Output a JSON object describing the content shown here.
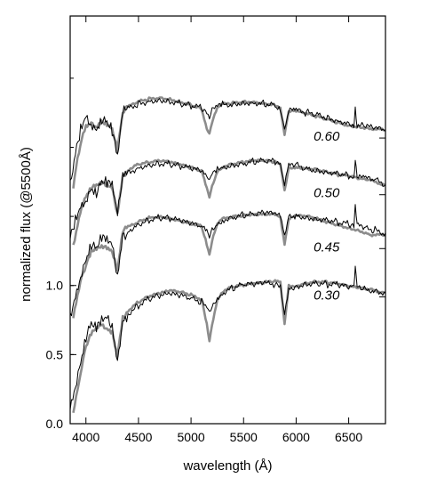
{
  "chart_data": {
    "type": "line",
    "title": "",
    "xlabel": "wavelength (Å)",
    "ylabel": "normalized flux (@5500Å)",
    "xlim": [
      3850,
      6850
    ],
    "ylim": [
      0.0,
      2.95
    ],
    "x_ticks": [
      4000,
      4500,
      5000,
      5500,
      6000,
      6500
    ],
    "y_ticks": [
      0.0,
      0.5,
      1.0
    ],
    "y_tick_labels": [
      "0.0",
      "0.5",
      "1.0"
    ],
    "grid": false,
    "legend": "none",
    "colors": {
      "observed": "#000000",
      "model": "#8c8c8c"
    },
    "offset_groups": [
      {
        "label": "0.30",
        "anchor": [
          6150,
          0.93
        ],
        "observed": {
          "x": [
            3850,
            3900,
            3950,
            4000,
            4050,
            4100,
            4150,
            4200,
            4250,
            4300,
            4350,
            4400,
            4500,
            4600,
            4700,
            4800,
            4900,
            5000,
            5100,
            5150,
            5175,
            5200,
            5250,
            5300,
            5400,
            5500,
            5600,
            5700,
            5800,
            5850,
            5890,
            5930,
            6000,
            6100,
            6200,
            6300,
            6400,
            6500,
            6550,
            6563,
            6580,
            6650,
            6750,
            6850
          ],
          "y": [
            0.15,
            0.3,
            0.45,
            0.62,
            0.7,
            0.66,
            0.72,
            0.74,
            0.7,
            0.45,
            0.78,
            0.8,
            0.86,
            0.9,
            0.92,
            0.93,
            0.92,
            0.9,
            0.88,
            0.84,
            0.8,
            0.86,
            0.92,
            0.95,
            0.98,
            1.0,
            1.0,
            1.01,
            1.0,
            0.98,
            0.78,
            0.98,
            1.0,
            1.02,
            1.02,
            1.01,
            1.0,
            0.98,
            0.99,
            1.12,
            0.98,
            0.97,
            0.97,
            0.95
          ]
        },
        "model": {
          "x": [
            3880,
            3920,
            3960,
            4000,
            4050,
            4100,
            4150,
            4200,
            4250,
            4300,
            4350,
            4400,
            4500,
            4600,
            4700,
            4800,
            4900,
            5000,
            5100,
            5150,
            5175,
            5200,
            5250,
            5300,
            5400,
            5500,
            5600,
            5700,
            5800,
            5850,
            5890,
            5930,
            6000,
            6100,
            6200,
            6300,
            6400,
            6500,
            6600,
            6700,
            6850
          ],
          "y": [
            0.1,
            0.25,
            0.42,
            0.55,
            0.64,
            0.68,
            0.7,
            0.68,
            0.66,
            0.5,
            0.78,
            0.82,
            0.88,
            0.92,
            0.94,
            0.96,
            0.95,
            0.93,
            0.9,
            0.72,
            0.6,
            0.72,
            0.9,
            0.96,
            0.99,
            1.0,
            1.01,
            1.02,
            1.03,
            1.02,
            0.72,
            1.0,
            1.0,
            1.02,
            1.03,
            1.02,
            1.01,
            0.99,
            0.98,
            0.97,
            0.95
          ]
        }
      },
      {
        "label": "0.45",
        "anchor": [
          6150,
          1.28
        ],
        "observed": {
          "x": [
            3850,
            3900,
            3950,
            4000,
            4050,
            4100,
            4150,
            4200,
            4250,
            4300,
            4350,
            4400,
            4500,
            4600,
            4700,
            4800,
            4900,
            5000,
            5100,
            5150,
            5175,
            5200,
            5250,
            5300,
            5400,
            5500,
            5600,
            5700,
            5800,
            5850,
            5890,
            5930,
            6000,
            6100,
            6200,
            6300,
            6400,
            6500,
            6550,
            6563,
            6580,
            6650,
            6750,
            6850
          ],
          "y": [
            0.8,
            0.95,
            1.1,
            1.2,
            1.3,
            1.25,
            1.32,
            1.3,
            1.26,
            1.05,
            1.36,
            1.4,
            1.45,
            1.48,
            1.49,
            1.48,
            1.46,
            1.44,
            1.42,
            1.38,
            1.34,
            1.4,
            1.45,
            1.48,
            1.5,
            1.51,
            1.51,
            1.52,
            1.51,
            1.49,
            1.34,
            1.49,
            1.51,
            1.5,
            1.49,
            1.48,
            1.46,
            1.44,
            1.43,
            1.58,
            1.43,
            1.41,
            1.4,
            1.38
          ]
        },
        "model": {
          "x": [
            3880,
            3920,
            3960,
            4000,
            4050,
            4100,
            4150,
            4200,
            4250,
            4300,
            4350,
            4400,
            4500,
            4600,
            4700,
            4800,
            4900,
            5000,
            5100,
            5150,
            5175,
            5200,
            5250,
            5300,
            5400,
            5500,
            5600,
            5700,
            5800,
            5850,
            5890,
            5930,
            6000,
            6100,
            6200,
            6300,
            6400,
            6500,
            6600,
            6700,
            6850
          ],
          "y": [
            0.75,
            0.92,
            1.05,
            1.15,
            1.26,
            1.28,
            1.3,
            1.28,
            1.25,
            1.1,
            1.38,
            1.42,
            1.46,
            1.49,
            1.5,
            1.49,
            1.47,
            1.45,
            1.43,
            1.3,
            1.22,
            1.32,
            1.44,
            1.48,
            1.5,
            1.51,
            1.52,
            1.52,
            1.52,
            1.5,
            1.3,
            1.48,
            1.5,
            1.5,
            1.48,
            1.46,
            1.44,
            1.42,
            1.4,
            1.37,
            1.36
          ]
        }
      },
      {
        "label": "0.50",
        "anchor": [
          6150,
          1.67
        ],
        "observed": {
          "x": [
            3850,
            3900,
            3950,
            4000,
            4050,
            4100,
            4150,
            4200,
            4250,
            4300,
            4350,
            4400,
            4500,
            4600,
            4700,
            4800,
            4900,
            5000,
            5100,
            5150,
            5175,
            5200,
            5250,
            5300,
            5400,
            5500,
            5600,
            5700,
            5800,
            5850,
            5890,
            5930,
            6000,
            6100,
            6200,
            6300,
            6400,
            6500,
            6550,
            6563,
            6580,
            6650,
            6750,
            6850
          ],
          "y": [
            1.35,
            1.5,
            1.6,
            1.65,
            1.72,
            1.68,
            1.74,
            1.72,
            1.7,
            1.48,
            1.78,
            1.82,
            1.86,
            1.88,
            1.89,
            1.88,
            1.86,
            1.84,
            1.82,
            1.78,
            1.74,
            1.8,
            1.84,
            1.86,
            1.88,
            1.89,
            1.9,
            1.9,
            1.89,
            1.87,
            1.72,
            1.86,
            1.87,
            1.85,
            1.84,
            1.83,
            1.82,
            1.8,
            1.79,
            1.92,
            1.78,
            1.77,
            1.76,
            1.73
          ]
        },
        "model": {
          "x": [
            3880,
            3920,
            3960,
            4000,
            4050,
            4100,
            4150,
            4200,
            4250,
            4300,
            4350,
            4400,
            4500,
            4600,
            4700,
            4800,
            4900,
            5000,
            5100,
            5150,
            5175,
            5200,
            5250,
            5300,
            5400,
            5500,
            5600,
            5700,
            5800,
            5850,
            5890,
            5930,
            6000,
            6100,
            6200,
            6300,
            6400,
            6500,
            6600,
            6700,
            6850
          ],
          "y": [
            1.3,
            1.45,
            1.58,
            1.64,
            1.7,
            1.71,
            1.73,
            1.72,
            1.7,
            1.52,
            1.8,
            1.84,
            1.88,
            1.89,
            1.9,
            1.89,
            1.87,
            1.85,
            1.83,
            1.7,
            1.64,
            1.72,
            1.83,
            1.86,
            1.88,
            1.89,
            1.9,
            1.9,
            1.89,
            1.87,
            1.68,
            1.85,
            1.86,
            1.85,
            1.84,
            1.82,
            1.8,
            1.79,
            1.77,
            1.76,
            1.73
          ]
        }
      },
      {
        "label": "0.60",
        "anchor": [
          6150,
          2.08
        ],
        "observed": {
          "x": [
            3850,
            3900,
            3950,
            4000,
            4050,
            4100,
            4150,
            4200,
            4250,
            4300,
            4350,
            4400,
            4500,
            4600,
            4700,
            4800,
            4900,
            5000,
            5100,
            5150,
            5175,
            5200,
            5250,
            5300,
            5400,
            5500,
            5600,
            5700,
            5800,
            5850,
            5890,
            5930,
            6000,
            6100,
            6200,
            6300,
            6400,
            6500,
            6550,
            6563,
            6580,
            6650,
            6750,
            6850
          ],
          "y": [
            1.7,
            1.95,
            2.15,
            2.25,
            2.2,
            2.15,
            2.22,
            2.18,
            2.1,
            1.9,
            2.22,
            2.28,
            2.32,
            2.34,
            2.35,
            2.34,
            2.32,
            2.3,
            2.28,
            2.24,
            2.2,
            2.26,
            2.29,
            2.31,
            2.32,
            2.33,
            2.33,
            2.32,
            2.3,
            2.28,
            2.12,
            2.26,
            2.26,
            2.25,
            2.24,
            2.22,
            2.2,
            2.18,
            2.17,
            2.3,
            2.16,
            2.15,
            2.13,
            2.12
          ]
        },
        "model": {
          "x": [
            3880,
            3920,
            3960,
            4000,
            4050,
            4100,
            4150,
            4200,
            4250,
            4300,
            4350,
            4400,
            4500,
            4600,
            4700,
            4800,
            4900,
            5000,
            5100,
            5150,
            5175,
            5200,
            5250,
            5300,
            5400,
            5500,
            5600,
            5700,
            5800,
            5850,
            5890,
            5930,
            6000,
            6100,
            6200,
            6300,
            6400,
            6500,
            6600,
            6700,
            6850
          ],
          "y": [
            1.7,
            1.9,
            2.05,
            2.15,
            2.18,
            2.16,
            2.2,
            2.18,
            2.14,
            1.98,
            2.24,
            2.29,
            2.33,
            2.35,
            2.36,
            2.35,
            2.33,
            2.31,
            2.28,
            2.14,
            2.1,
            2.18,
            2.28,
            2.31,
            2.32,
            2.33,
            2.33,
            2.32,
            2.31,
            2.29,
            2.1,
            2.26,
            2.26,
            2.24,
            2.22,
            2.2,
            2.18,
            2.16,
            2.15,
            2.14,
            2.12
          ]
        }
      }
    ]
  }
}
